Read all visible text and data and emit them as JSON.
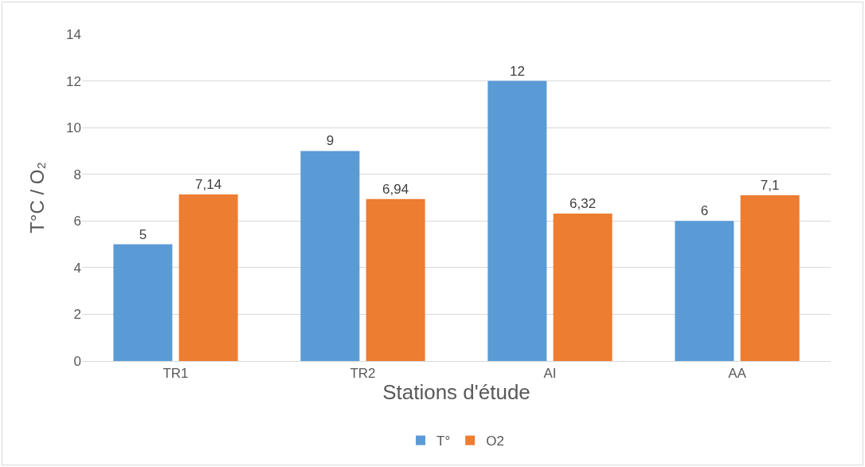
{
  "chart_data": {
    "type": "bar",
    "xlabel": "Stations d'étude",
    "ylabel": "T°C / O₂",
    "categories": [
      "TR1",
      "TR2",
      "AI",
      "AA"
    ],
    "series": [
      {
        "name": "T°",
        "color": "#5b9bd5",
        "values": [
          5,
          9,
          12,
          6
        ],
        "value_labels": [
          "5",
          "9",
          "12",
          "6"
        ]
      },
      {
        "name": "O2",
        "color": "#ed7d31",
        "values": [
          7.14,
          6.94,
          6.32,
          7.1
        ],
        "value_labels": [
          "7,14",
          "6,94",
          "6,32",
          "7,1"
        ]
      }
    ],
    "ylim": [
      0,
      14
    ],
    "yticks": [
      0,
      2,
      4,
      6,
      8,
      10,
      12,
      14
    ],
    "grid": "y",
    "legend": "bottom"
  }
}
